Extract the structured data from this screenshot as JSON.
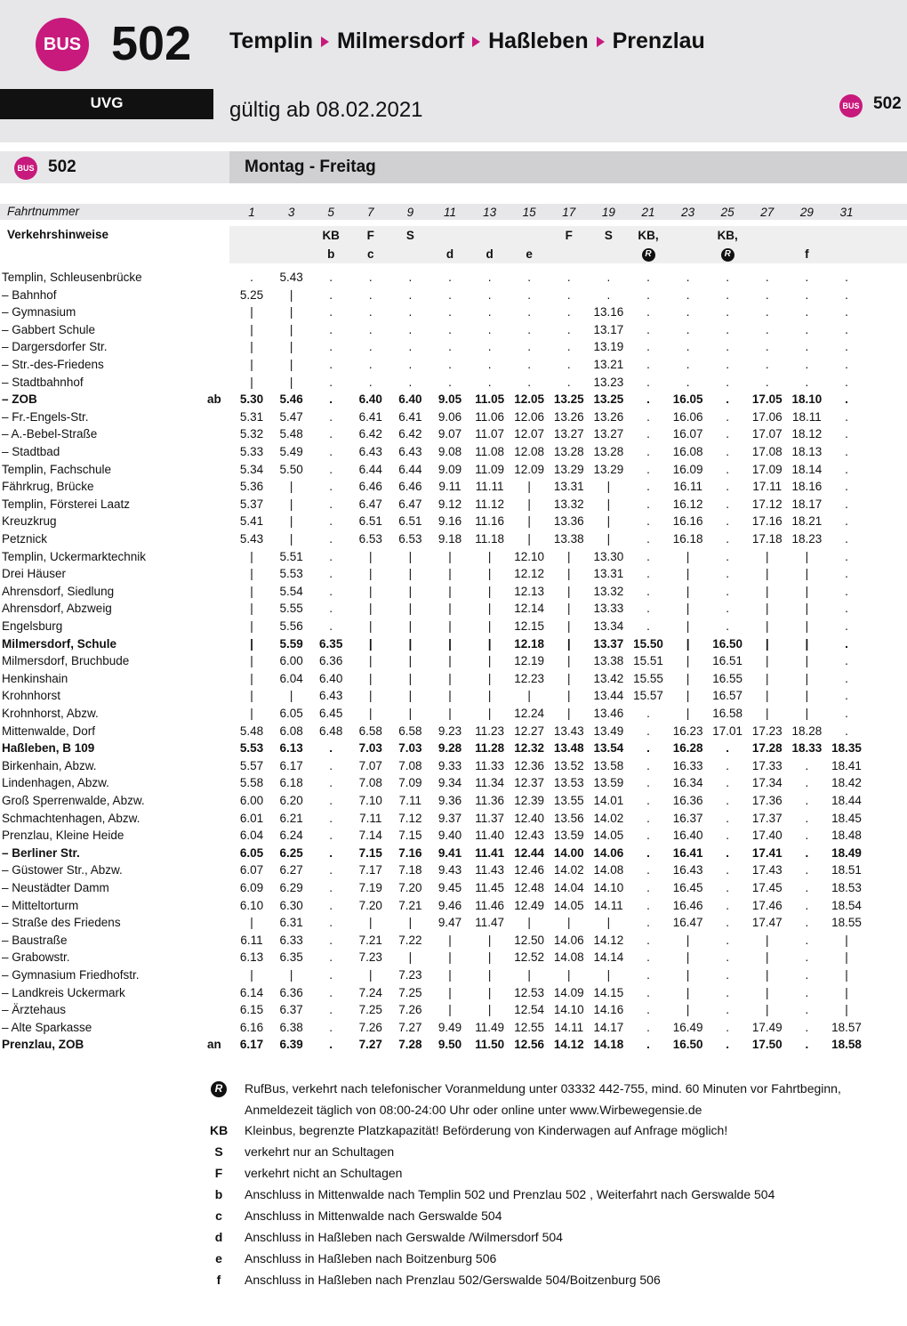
{
  "header": {
    "badge": "BUS",
    "line": "502",
    "route": [
      "Templin",
      "Milmersdorf",
      "Haßleben",
      "Prenzlau"
    ],
    "operator": "UVG",
    "valid": "gültig ab 08.02.2021",
    "corner_badge": "BUS",
    "corner_line": "502"
  },
  "section": {
    "badge": "BUS",
    "line": "502",
    "days": "Montag - Freitag"
  },
  "table": {
    "trip_label": "Fahrtnummer",
    "trips": [
      1,
      3,
      5,
      7,
      9,
      11,
      13,
      15,
      17,
      19,
      21,
      23,
      25,
      27,
      29,
      31
    ],
    "notes_label": "Verkehrshinweise",
    "notes": [
      [
        null,
        null,
        "KB",
        "F",
        "S",
        null,
        null,
        null,
        "F",
        "S",
        "KB,",
        null,
        "KB,",
        null,
        null,
        null
      ],
      [
        null,
        null,
        "b",
        "c",
        null,
        "d",
        "d",
        "e",
        null,
        null,
        "R",
        null,
        "R",
        null,
        "f",
        null
      ]
    ],
    "rows": [
      {
        "stop": "Templin, Schleusenbrücke",
        "cells": [
          ".",
          "5.43",
          ".",
          ".",
          ".",
          ".",
          ".",
          ".",
          ".",
          ".",
          ".",
          ".",
          ".",
          ".",
          ".",
          "."
        ]
      },
      {
        "stop": "– Bahnhof",
        "cells": [
          "5.25",
          "|",
          ".",
          ".",
          ".",
          ".",
          ".",
          ".",
          ".",
          ".",
          ".",
          ".",
          ".",
          ".",
          ".",
          "."
        ]
      },
      {
        "stop": "– Gymnasium",
        "cells": [
          "|",
          "|",
          ".",
          ".",
          ".",
          ".",
          ".",
          ".",
          ".",
          "13.16",
          ".",
          ".",
          ".",
          ".",
          ".",
          "."
        ]
      },
      {
        "stop": "– Gabbert Schule",
        "cells": [
          "|",
          "|",
          ".",
          ".",
          ".",
          ".",
          ".",
          ".",
          ".",
          "13.17",
          ".",
          ".",
          ".",
          ".",
          ".",
          "."
        ]
      },
      {
        "stop": "– Dargersdorfer Str.",
        "cells": [
          "|",
          "|",
          ".",
          ".",
          ".",
          ".",
          ".",
          ".",
          ".",
          "13.19",
          ".",
          ".",
          ".",
          ".",
          ".",
          "."
        ]
      },
      {
        "stop": "– Str.-des-Friedens",
        "cells": [
          "|",
          "|",
          ".",
          ".",
          ".",
          ".",
          ".",
          ".",
          ".",
          "13.21",
          ".",
          ".",
          ".",
          ".",
          ".",
          "."
        ]
      },
      {
        "stop": "– Stadtbahnhof",
        "cells": [
          "|",
          "|",
          ".",
          ".",
          ".",
          ".",
          ".",
          ".",
          ".",
          "13.23",
          ".",
          ".",
          ".",
          ".",
          ".",
          "."
        ]
      },
      {
        "stop": "– ZOB",
        "mark": "ab",
        "bold": true,
        "cells": [
          "5.30",
          "5.46",
          ".",
          "6.40",
          "6.40",
          "9.05",
          "11.05",
          "12.05",
          "13.25",
          "13.25",
          ".",
          "16.05",
          ".",
          "17.05",
          "18.10",
          "."
        ]
      },
      {
        "stop": "– Fr.-Engels-Str.",
        "cells": [
          "5.31",
          "5.47",
          ".",
          "6.41",
          "6.41",
          "9.06",
          "11.06",
          "12.06",
          "13.26",
          "13.26",
          ".",
          "16.06",
          ".",
          "17.06",
          "18.11",
          "."
        ]
      },
      {
        "stop": "– A.-Bebel-Straße",
        "cells": [
          "5.32",
          "5.48",
          ".",
          "6.42",
          "6.42",
          "9.07",
          "11.07",
          "12.07",
          "13.27",
          "13.27",
          ".",
          "16.07",
          ".",
          "17.07",
          "18.12",
          "."
        ]
      },
      {
        "stop": "– Stadtbad",
        "cells": [
          "5.33",
          "5.49",
          ".",
          "6.43",
          "6.43",
          "9.08",
          "11.08",
          "12.08",
          "13.28",
          "13.28",
          ".",
          "16.08",
          ".",
          "17.08",
          "18.13",
          "."
        ]
      },
      {
        "stop": "Templin, Fachschule",
        "cells": [
          "5.34",
          "5.50",
          ".",
          "6.44",
          "6.44",
          "9.09",
          "11.09",
          "12.09",
          "13.29",
          "13.29",
          ".",
          "16.09",
          ".",
          "17.09",
          "18.14",
          "."
        ]
      },
      {
        "stop": "Fährkrug, Brücke",
        "cells": [
          "5.36",
          "|",
          ".",
          "6.46",
          "6.46",
          "9.11",
          "11.11",
          "|",
          "13.31",
          "|",
          ".",
          "16.11",
          ".",
          "17.11",
          "18.16",
          "."
        ]
      },
      {
        "stop": "Templin, Försterei Laatz",
        "cells": [
          "5.37",
          "|",
          ".",
          "6.47",
          "6.47",
          "9.12",
          "11.12",
          "|",
          "13.32",
          "|",
          ".",
          "16.12",
          ".",
          "17.12",
          "18.17",
          "."
        ]
      },
      {
        "stop": "Kreuzkrug",
        "cells": [
          "5.41",
          "|",
          ".",
          "6.51",
          "6.51",
          "9.16",
          "11.16",
          "|",
          "13.36",
          "|",
          ".",
          "16.16",
          ".",
          "17.16",
          "18.21",
          "."
        ]
      },
      {
        "stop": "Petznick",
        "cells": [
          "5.43",
          "|",
          ".",
          "6.53",
          "6.53",
          "9.18",
          "11.18",
          "|",
          "13.38",
          "|",
          ".",
          "16.18",
          ".",
          "17.18",
          "18.23",
          "."
        ]
      },
      {
        "stop": "Templin, Uckermarktechnik",
        "cells": [
          "|",
          "5.51",
          ".",
          "|",
          "|",
          "|",
          "|",
          "12.10",
          "|",
          "13.30",
          ".",
          "|",
          ".",
          "|",
          "|",
          "."
        ]
      },
      {
        "stop": "Drei Häuser",
        "cells": [
          "|",
          "5.53",
          ".",
          "|",
          "|",
          "|",
          "|",
          "12.12",
          "|",
          "13.31",
          ".",
          "|",
          ".",
          "|",
          "|",
          "."
        ]
      },
      {
        "stop": "Ahrensdorf, Siedlung",
        "cells": [
          "|",
          "5.54",
          ".",
          "|",
          "|",
          "|",
          "|",
          "12.13",
          "|",
          "13.32",
          ".",
          "|",
          ".",
          "|",
          "|",
          "."
        ]
      },
      {
        "stop": "Ahrensdorf, Abzweig",
        "cells": [
          "|",
          "5.55",
          ".",
          "|",
          "|",
          "|",
          "|",
          "12.14",
          "|",
          "13.33",
          ".",
          "|",
          ".",
          "|",
          "|",
          "."
        ]
      },
      {
        "stop": "Engelsburg",
        "cells": [
          "|",
          "5.56",
          ".",
          "|",
          "|",
          "|",
          "|",
          "12.15",
          "|",
          "13.34",
          ".",
          "|",
          ".",
          "|",
          "|",
          "."
        ]
      },
      {
        "stop": "Milmersdorf, Schule",
        "bold": true,
        "cells": [
          "|",
          "5.59",
          "6.35",
          "|",
          "|",
          "|",
          "|",
          "12.18",
          "|",
          "13.37",
          "15.50",
          "|",
          "16.50",
          "|",
          "|",
          "."
        ]
      },
      {
        "stop": "Milmersdorf, Bruchbude",
        "cells": [
          "|",
          "6.00",
          "6.36",
          "|",
          "|",
          "|",
          "|",
          "12.19",
          "|",
          "13.38",
          "15.51",
          "|",
          "16.51",
          "|",
          "|",
          "."
        ]
      },
      {
        "stop": "Henkinshain",
        "cells": [
          "|",
          "6.04",
          "6.40",
          "|",
          "|",
          "|",
          "|",
          "12.23",
          "|",
          "13.42",
          "15.55",
          "|",
          "16.55",
          "|",
          "|",
          "."
        ]
      },
      {
        "stop": "Krohnhorst",
        "cells": [
          "|",
          "|",
          "6.43",
          "|",
          "|",
          "|",
          "|",
          "|",
          "|",
          "13.44",
          "15.57",
          "|",
          "16.57",
          "|",
          "|",
          "."
        ]
      },
      {
        "stop": "Krohnhorst, Abzw.",
        "cells": [
          "|",
          "6.05",
          "6.45",
          "|",
          "|",
          "|",
          "|",
          "12.24",
          "|",
          "13.46",
          ".",
          "|",
          "16.58",
          "|",
          "|",
          "."
        ]
      },
      {
        "stop": "Mittenwalde, Dorf",
        "cells": [
          "5.48",
          "6.08",
          "6.48",
          "6.58",
          "6.58",
          "9.23",
          "11.23",
          "12.27",
          "13.43",
          "13.49",
          ".",
          "16.23",
          "17.01",
          "17.23",
          "18.28",
          "."
        ]
      },
      {
        "stop": "Haßleben, B 109",
        "bold": true,
        "cells": [
          "5.53",
          "6.13",
          ".",
          "7.03",
          "7.03",
          "9.28",
          "11.28",
          "12.32",
          "13.48",
          "13.54",
          ".",
          "16.28",
          ".",
          "17.28",
          "18.33",
          "18.35"
        ]
      },
      {
        "stop": "Birkenhain, Abzw.",
        "cells": [
          "5.57",
          "6.17",
          ".",
          "7.07",
          "7.08",
          "9.33",
          "11.33",
          "12.36",
          "13.52",
          "13.58",
          ".",
          "16.33",
          ".",
          "17.33",
          ".",
          "18.41"
        ]
      },
      {
        "stop": "Lindenhagen, Abzw.",
        "cells": [
          "5.58",
          "6.18",
          ".",
          "7.08",
          "7.09",
          "9.34",
          "11.34",
          "12.37",
          "13.53",
          "13.59",
          ".",
          "16.34",
          ".",
          "17.34",
          ".",
          "18.42"
        ]
      },
      {
        "stop": "Groß Sperrenwalde, Abzw.",
        "cells": [
          "6.00",
          "6.20",
          ".",
          "7.10",
          "7.11",
          "9.36",
          "11.36",
          "12.39",
          "13.55",
          "14.01",
          ".",
          "16.36",
          ".",
          "17.36",
          ".",
          "18.44"
        ]
      },
      {
        "stop": "Schmachtenhagen, Abzw.",
        "cells": [
          "6.01",
          "6.21",
          ".",
          "7.11",
          "7.12",
          "9.37",
          "11.37",
          "12.40",
          "13.56",
          "14.02",
          ".",
          "16.37",
          ".",
          "17.37",
          ".",
          "18.45"
        ]
      },
      {
        "stop": "Prenzlau, Kleine Heide",
        "cells": [
          "6.04",
          "6.24",
          ".",
          "7.14",
          "7.15",
          "9.40",
          "11.40",
          "12.43",
          "13.59",
          "14.05",
          ".",
          "16.40",
          ".",
          "17.40",
          ".",
          "18.48"
        ]
      },
      {
        "stop": "– Berliner Str.",
        "bold": true,
        "cells": [
          "6.05",
          "6.25",
          ".",
          "7.15",
          "7.16",
          "9.41",
          "11.41",
          "12.44",
          "14.00",
          "14.06",
          ".",
          "16.41",
          ".",
          "17.41",
          ".",
          "18.49"
        ]
      },
      {
        "stop": "– Güstower Str., Abzw.",
        "cells": [
          "6.07",
          "6.27",
          ".",
          "7.17",
          "7.18",
          "9.43",
          "11.43",
          "12.46",
          "14.02",
          "14.08",
          ".",
          "16.43",
          ".",
          "17.43",
          ".",
          "18.51"
        ]
      },
      {
        "stop": "– Neustädter Damm",
        "cells": [
          "6.09",
          "6.29",
          ".",
          "7.19",
          "7.20",
          "9.45",
          "11.45",
          "12.48",
          "14.04",
          "14.10",
          ".",
          "16.45",
          ".",
          "17.45",
          ".",
          "18.53"
        ]
      },
      {
        "stop": "– Mitteltorturm",
        "cells": [
          "6.10",
          "6.30",
          ".",
          "7.20",
          "7.21",
          "9.46",
          "11.46",
          "12.49",
          "14.05",
          "14.11",
          ".",
          "16.46",
          ".",
          "17.46",
          ".",
          "18.54"
        ]
      },
      {
        "stop": "– Straße des Friedens",
        "cells": [
          "|",
          "6.31",
          ".",
          "|",
          "|",
          "9.47",
          "11.47",
          "|",
          "|",
          "|",
          ".",
          "16.47",
          ".",
          "17.47",
          ".",
          "18.55"
        ]
      },
      {
        "stop": "– Baustraße",
        "cells": [
          "6.11",
          "6.33",
          ".",
          "7.21",
          "7.22",
          "|",
          "|",
          "12.50",
          "14.06",
          "14.12",
          ".",
          "|",
          ".",
          "|",
          ".",
          "|"
        ]
      },
      {
        "stop": "– Grabowstr.",
        "cells": [
          "6.13",
          "6.35",
          ".",
          "7.23",
          "|",
          "|",
          "|",
          "12.52",
          "14.08",
          "14.14",
          ".",
          "|",
          ".",
          "|",
          ".",
          "|"
        ]
      },
      {
        "stop": "– Gymnasium Friedhofstr.",
        "cells": [
          "|",
          "|",
          ".",
          "|",
          "7.23",
          "|",
          "|",
          "|",
          "|",
          "|",
          ".",
          "|",
          ".",
          "|",
          ".",
          "|"
        ]
      },
      {
        "stop": "– Landkreis Uckermark",
        "cells": [
          "6.14",
          "6.36",
          ".",
          "7.24",
          "7.25",
          "|",
          "|",
          "12.53",
          "14.09",
          "14.15",
          ".",
          "|",
          ".",
          "|",
          ".",
          "|"
        ]
      },
      {
        "stop": "– Ärztehaus",
        "cells": [
          "6.15",
          "6.37",
          ".",
          "7.25",
          "7.26",
          "|",
          "|",
          "12.54",
          "14.10",
          "14.16",
          ".",
          "|",
          ".",
          "|",
          ".",
          "|"
        ]
      },
      {
        "stop": "– Alte Sparkasse",
        "cells": [
          "6.16",
          "6.38",
          ".",
          "7.26",
          "7.27",
          "9.49",
          "11.49",
          "12.55",
          "14.11",
          "14.17",
          ".",
          "16.49",
          ".",
          "17.49",
          ".",
          "18.57"
        ]
      },
      {
        "stop": "Prenzlau, ZOB",
        "mark": "an",
        "bold": true,
        "cells": [
          "6.17",
          "6.39",
          ".",
          "7.27",
          "7.28",
          "9.50",
          "11.50",
          "12.56",
          "14.12",
          "14.18",
          ".",
          "16.50",
          ".",
          "17.50",
          ".",
          "18.58"
        ]
      }
    ]
  },
  "footnotes": [
    {
      "symbol": "R",
      "text": "RufBus, verkehrt nach telefonischer Voranmeldung unter 03332 442-755, mind. 60 Minuten vor Fahrtbe­ginn,  Anmeldezeit täglich von 08:00-24:00 Uhr oder online unter www.Wirbewegensie.de"
    },
    {
      "symbol": "KB",
      "text": "Kleinbus, begrenzte Platzkapazität! Beförderung von Kinderwagen auf Anfrage möglich!"
    },
    {
      "symbol": "S",
      "text": "verkehrt nur an Schultagen"
    },
    {
      "symbol": "F",
      "text": "verkehrt nicht an Schultagen"
    },
    {
      "symbol": "b",
      "text": "Anschluss in Mittenwalde nach Templin 502 und Prenzlau 502 , Weiterfahrt nach Gerswalde 504"
    },
    {
      "symbol": "c",
      "text": "Anschluss in Mittenwalde nach Gerswalde 504"
    },
    {
      "symbol": "d",
      "text": "Anschluss in Haßleben nach Gerswalde /Wilmersdorf  504"
    },
    {
      "symbol": "e",
      "text": "Anschluss in Haßleben nach Boitzenburg 506"
    },
    {
      "symbol": "f",
      "text": "Anschluss in Haßleben nach Prenzlau 502/Gerswalde 504/Boitzenburg 506"
    }
  ]
}
